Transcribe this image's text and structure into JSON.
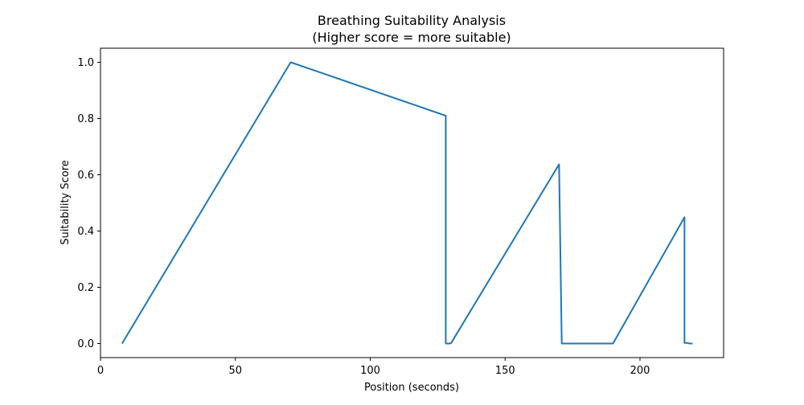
{
  "chart_data": {
    "type": "line",
    "title": "Breathing Suitability Analysis",
    "subtitle": "(Higher score = more suitable)",
    "xlabel": "Position (seconds)",
    "ylabel": "Suitability Score",
    "xlim": [
      0,
      231
    ],
    "ylim": [
      -0.05,
      1.05
    ],
    "xticks": [
      0,
      50,
      100,
      150,
      200
    ],
    "yticks": [
      0.0,
      0.2,
      0.4,
      0.6,
      0.8,
      1.0
    ],
    "xtick_labels": [
      "0",
      "50",
      "100",
      "150",
      "200"
    ],
    "ytick_labels": [
      "0.0",
      "0.2",
      "0.4",
      "0.6",
      "0.8",
      "1.0"
    ],
    "grid": false,
    "legend": "none",
    "line_color": "#1f77b4",
    "series": [
      {
        "x": [
          8,
          70.5,
          128,
          128,
          129.5,
          130,
          170,
          171,
          190,
          216.5,
          216.5,
          217.5,
          218.5,
          219.5
        ],
        "values": [
          0,
          1.0,
          0.81,
          0.0,
          0.0,
          0.002,
          0.637,
          0.0,
          0.0,
          0.449,
          0.002,
          0.002,
          0.0,
          0.0
        ]
      }
    ]
  }
}
